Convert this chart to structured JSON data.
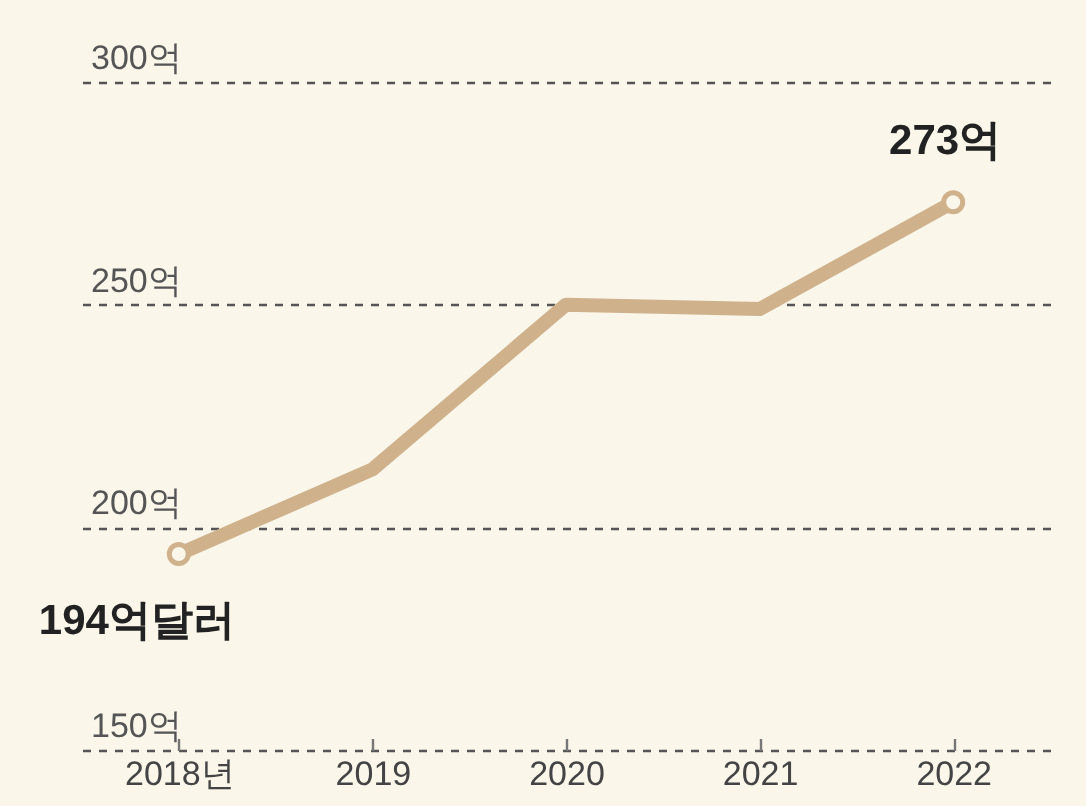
{
  "chart_data": {
    "type": "line",
    "categories": [
      "2018년",
      "2019",
      "2020",
      "2021",
      "2022"
    ],
    "series": [
      {
        "color": "#cfb28c",
        "values": [
          194,
          213,
          250,
          249,
          273
        ]
      }
    ],
    "ylim": [
      150,
      300
    ],
    "yticks": [
      {
        "value": 150,
        "label": "150억"
      },
      {
        "value": 200,
        "label": "200억"
      },
      {
        "value": 250,
        "label": "250억"
      },
      {
        "value": 300,
        "label": "300억"
      }
    ],
    "grid": "y",
    "annotations": [
      {
        "text": "194억달러",
        "x": "2018년",
        "y": 194
      },
      {
        "text": "273억",
        "x": "2022",
        "y": 273
      }
    ]
  }
}
